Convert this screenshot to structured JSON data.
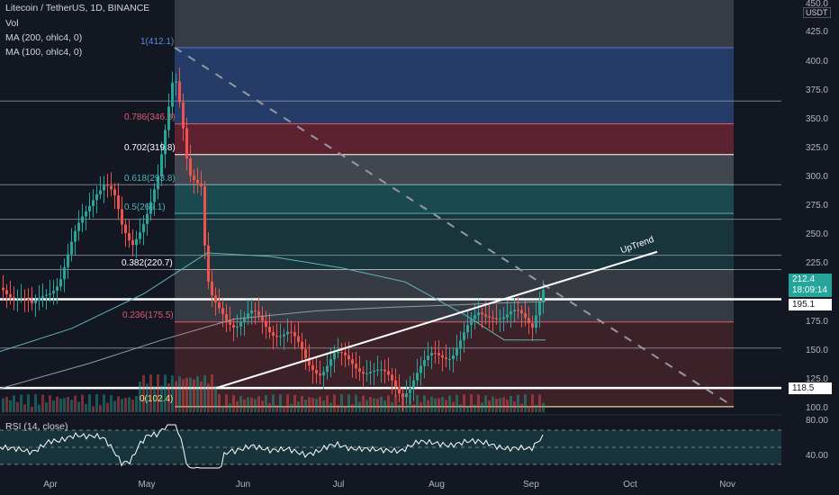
{
  "header": {
    "symbol_title": "Litecoin / TetherUS, 1D, BINANCE",
    "volume_label": "Vol",
    "ma200_label": "MA (200, ohlc4, 0)",
    "ma100_label": "MA (100, ohlc4, 0)"
  },
  "currency": "USDT",
  "price_axis": {
    "ticks": [
      "450.0",
      "425.0",
      "400.0",
      "375.0",
      "350.0",
      "325.0",
      "300.0",
      "275.0",
      "250.0",
      "225.0",
      "175.0",
      "150.0",
      "125.0",
      "100.0"
    ],
    "current_price": "212.4",
    "countdown": "18:09:14",
    "tag_195": "195.1",
    "tag_118": "118.5"
  },
  "time_axis": [
    "Apr",
    "May",
    "Jun",
    "Jul",
    "Aug",
    "Sep",
    "Oct",
    "Nov"
  ],
  "fib_levels": [
    {
      "label": "1(412.1)",
      "value": 412.1,
      "color": "#5b8ce0"
    },
    {
      "label": "0.786(346.3)",
      "value": 346.3,
      "color": "#e05b6e"
    },
    {
      "label": "0.702(319.8)",
      "value": 319.8,
      "color": "#ffffff"
    },
    {
      "label": "0.618(293.8)",
      "value": 293.8,
      "color": "#4fb0b8"
    },
    {
      "label": "0.5(269.1)",
      "value": 269.1,
      "color": "#4fb0b8"
    },
    {
      "label": "0.382(220.7)",
      "value": 220.7,
      "color": "#ffffff"
    },
    {
      "label": "0.236(175.5)",
      "value": 175.5,
      "color": "#e05b6e"
    },
    {
      "label": "0(102.4)",
      "value": 102.4,
      "color": "#f0e68c"
    }
  ],
  "trendline_label": "UpTrend",
  "rsi": {
    "label": "RSI (14, close)",
    "ticks": [
      "80.00",
      "40.00"
    ]
  },
  "colors": {
    "up": "#26a69a",
    "down": "#ef5350",
    "bg": "#131722"
  }
}
